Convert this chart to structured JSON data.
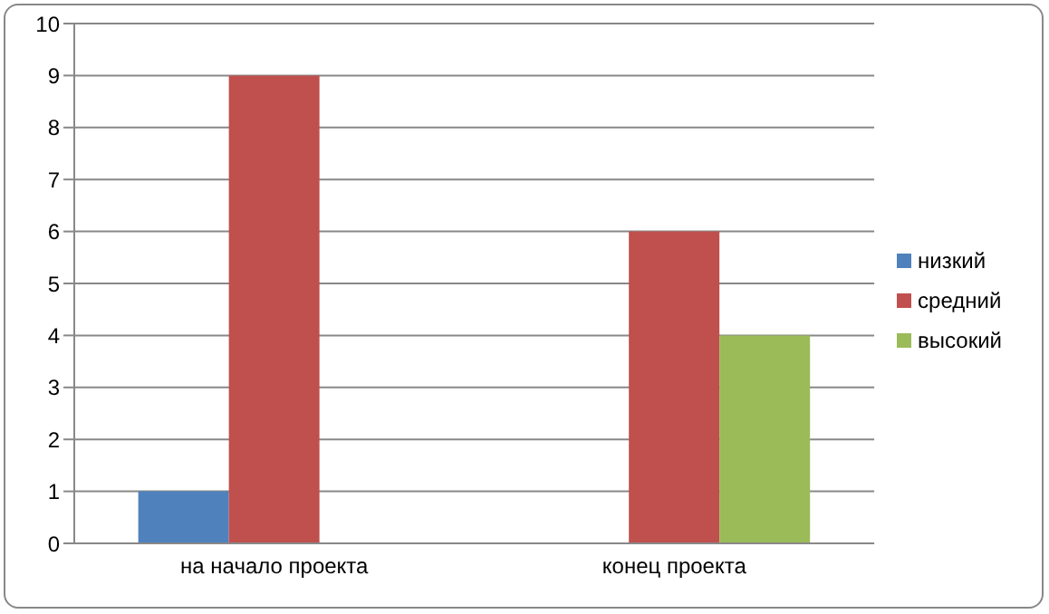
{
  "chart_data": {
    "type": "bar",
    "categories": [
      "на начало проекта",
      "конец проекта"
    ],
    "series": [
      {
        "name": "низкий",
        "color": "#4f81bd",
        "values": [
          1,
          0
        ]
      },
      {
        "name": "средний",
        "color": "#c0504d",
        "values": [
          9,
          6
        ]
      },
      {
        "name": "высокий",
        "color": "#9bbb59",
        "values": [
          0,
          4
        ]
      }
    ],
    "ylim": [
      0,
      10
    ],
    "yticks": [
      0,
      1,
      2,
      3,
      4,
      5,
      6,
      7,
      8,
      9,
      10
    ],
    "grid": "y",
    "legend": "right"
  }
}
